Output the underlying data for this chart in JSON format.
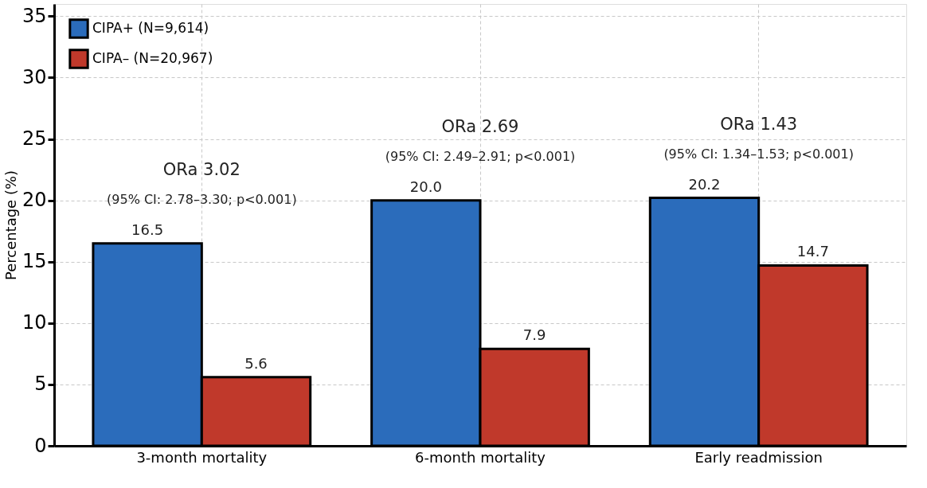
{
  "chart_data": {
    "type": "bar",
    "ylabel": "Percentage (%)",
    "categories": [
      "3-month mortality",
      "6-month mortality",
      "Early readmission"
    ],
    "series": [
      {
        "name": "CIPA+ (N=9,614)",
        "color": "#2b6cbb",
        "values": [
          16.5,
          20.0,
          20.2
        ],
        "value_labels": [
          "16.5",
          "20.0",
          "20.2"
        ]
      },
      {
        "name": "CIPA– (N=20,967)",
        "color": "#c0392b",
        "values": [
          5.6,
          7.9,
          14.7
        ],
        "value_labels": [
          "5.6",
          "7.9",
          "14.7"
        ]
      }
    ],
    "ylim": [
      0,
      36
    ],
    "yticks": [
      0,
      5,
      10,
      15,
      20,
      25,
      30,
      35
    ],
    "grid": true,
    "legend": "top left",
    "annotations": [
      "ORa 3.02",
      "(95% CI: 2.78–3.30; p<0.001)",
      "ORa 2.69",
      "(95% CI: 2.49–2.91; p<0.001)",
      "ORa 1.43",
      "(95% CI: 1.34–1.53; p<0.001)"
    ]
  }
}
